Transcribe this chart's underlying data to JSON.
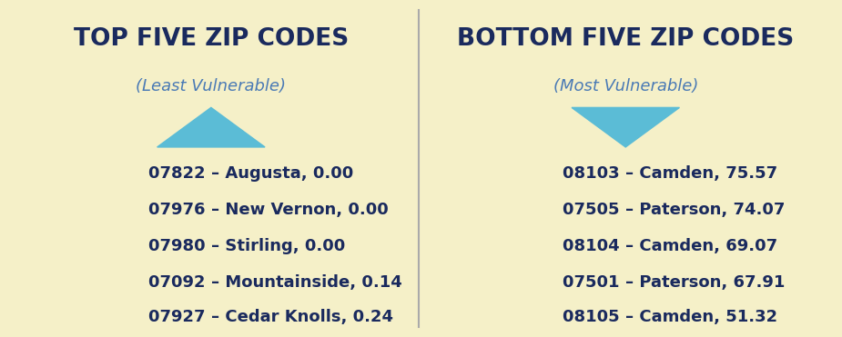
{
  "background_color": "#f5f0c8",
  "divider_color": "#aaaaaa",
  "title_color": "#1a2a5e",
  "subtitle_color": "#4a7ab5",
  "text_color": "#1a2a5e",
  "triangle_color": "#5bbcd6",
  "left_title": "TOP FIVE ZIP CODES",
  "left_subtitle": "(Least Vulnerable)",
  "right_title": "BOTTOM FIVE ZIP CODES",
  "right_subtitle": "(Most Vulnerable)",
  "left_entries": [
    "07822 – Augusta, 0.00",
    "07976 – New Vernon, 0.00",
    "07980 – Stirling, 0.00",
    "07092 – Mountainside, 0.14",
    "07927 – Cedar Knolls, 0.24"
  ],
  "right_entries": [
    "08103 – Camden, 75.57",
    "07505 – Paterson, 74.07",
    "08104 – Camden, 69.07",
    "07501 – Paterson, 67.91",
    "08105 – Camden, 51.32"
  ],
  "title_fontsize": 19,
  "subtitle_fontsize": 13,
  "entry_fontsize": 13,
  "figsize": [
    9.25,
    3.71
  ],
  "dpi": 100
}
